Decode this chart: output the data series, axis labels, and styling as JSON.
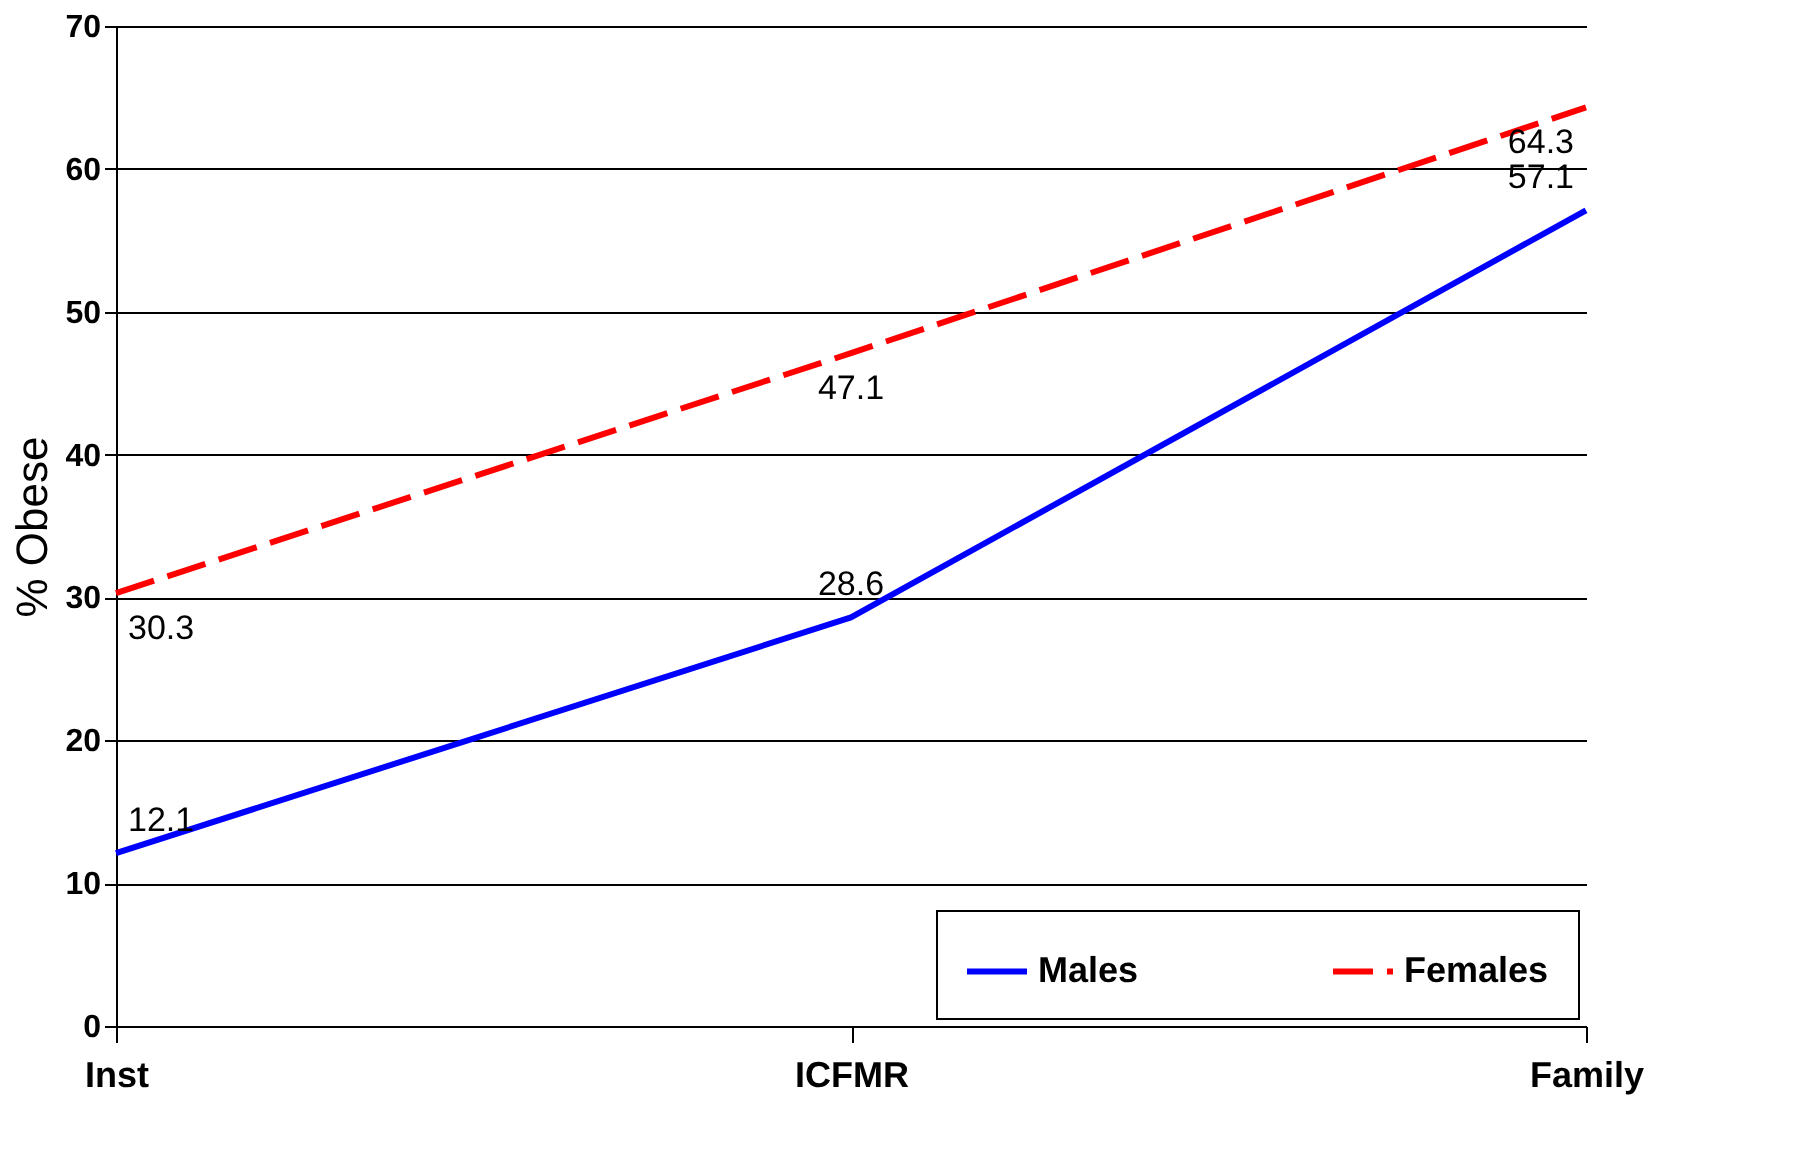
{
  "chart_data": {
    "type": "line",
    "ylabel": "% Obese",
    "categories": [
      "Inst",
      "ICFMR",
      "Family"
    ],
    "series": [
      {
        "name": "Males",
        "color": "#0000ff",
        "line_style": "solid",
        "values": [
          12.1,
          28.6,
          57.1
        ]
      },
      {
        "name": "Females",
        "color": "#ff0000",
        "line_style": "dashed",
        "values": [
          30.3,
          47.1,
          64.3
        ]
      }
    ],
    "ylim": [
      0,
      70
    ],
    "yticks": [
      0,
      10,
      20,
      30,
      40,
      50,
      60,
      70
    ],
    "grid": "y",
    "legend": "bottom",
    "data_labels": true,
    "marker": "none"
  }
}
